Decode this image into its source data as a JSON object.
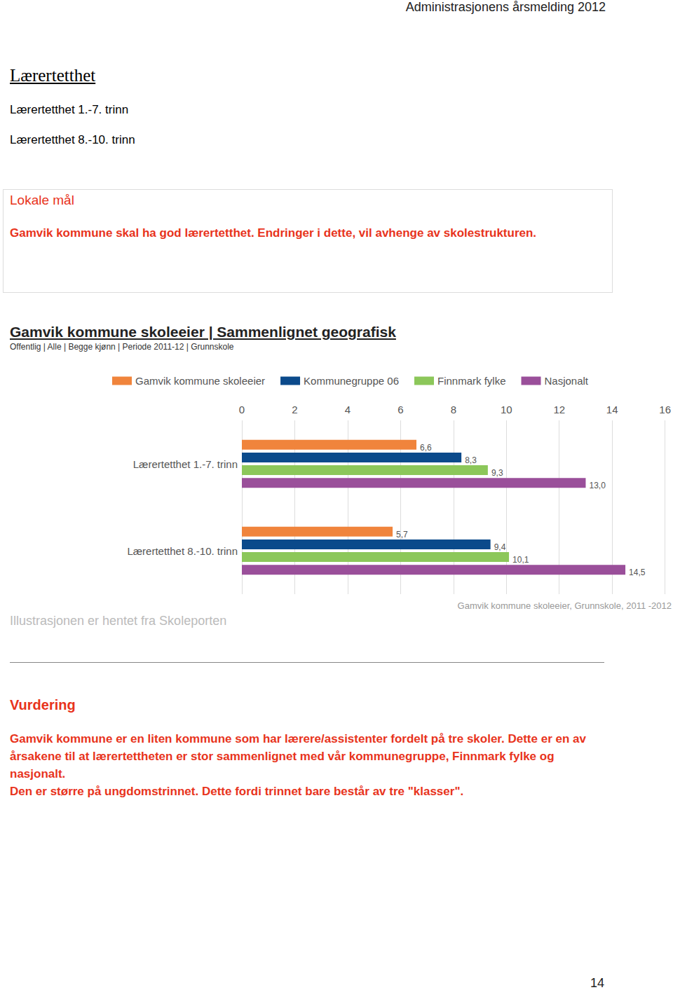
{
  "header": "Administrasjonens årsmelding 2012",
  "heading": "Lærertetthet",
  "indicators": [
    "Lærertetthet 1.-7. trinn",
    "Lærertetthet 8.-10. trinn"
  ],
  "local_goals": {
    "title": "Lokale mål",
    "text": "Gamvik kommune skal ha god lærertetthet. Endringer i dette, vil avhenge av skolestrukturen."
  },
  "chart_data": {
    "type": "bar",
    "orientation": "horizontal",
    "title": "Gamvik kommune skoleeier | Sammenlignet geografisk",
    "subtitle": "Offentlig | Alle | Begge kjønn | Periode 2011-12 | Grunnskole",
    "categories": [
      "Lærertetthet 1.-7. trinn",
      "Lærertetthet 8.-10. trinn"
    ],
    "series": [
      {
        "name": "Gamvik kommune skoleeier",
        "color": "#f0843c",
        "values": [
          6.6,
          5.7
        ],
        "value_labels": [
          "6,6",
          "5,7"
        ]
      },
      {
        "name": "Kommunegruppe 06",
        "color": "#0b4a8b",
        "values": [
          8.3,
          9.4
        ],
        "value_labels": [
          "8,3",
          "9,4"
        ]
      },
      {
        "name": "Finnmark fylke",
        "color": "#8cc75a",
        "values": [
          9.3,
          10.1
        ],
        "value_labels": [
          "9,3",
          "10,1"
        ]
      },
      {
        "name": "Nasjonalt",
        "color": "#9a4f9a",
        "values": [
          13.0,
          14.5
        ],
        "value_labels": [
          "13,0",
          "14,5"
        ]
      }
    ],
    "xlim": [
      0,
      16
    ],
    "xticks": [
      0,
      2,
      4,
      6,
      8,
      10,
      12,
      14,
      16
    ],
    "grid": true,
    "data_labels": true,
    "legend": "top"
  },
  "chart_note": "Gamvik kommune skoleeier, Grunnskole, 2011 -2012",
  "caption": "Illustrasjonen er hentet fra Skoleporten",
  "assessment": {
    "title": "Vurdering",
    "paragraphs": [
      "Gamvik kommune er en liten kommune som har lærere/assistenter fordelt på tre skoler. Dette er en av årsakene til at lærertettheten er stor sammenlignet med vår kommunegruppe, Finnmark fylke og nasjonalt.",
      "Den er større på ungdomstrinnet. Dette fordi trinnet bare består av tre \"klasser\"."
    ]
  },
  "page_number": "14"
}
